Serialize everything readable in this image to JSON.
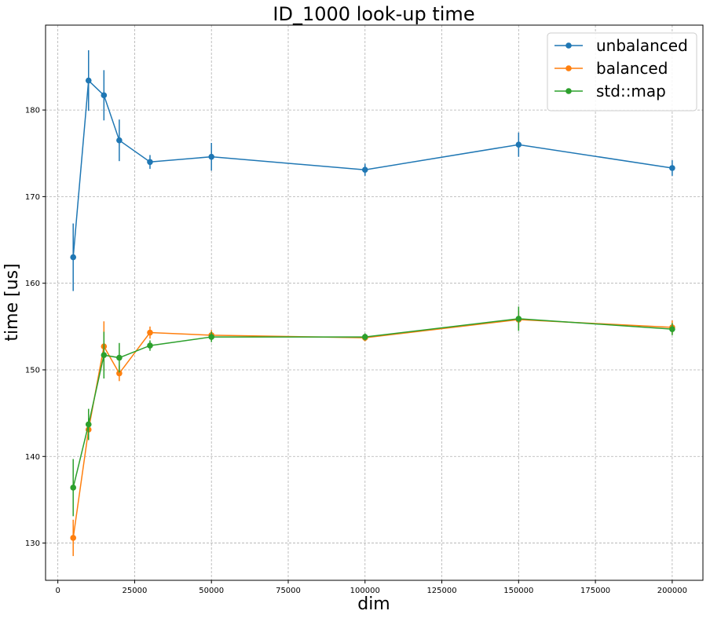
{
  "chart_data": {
    "type": "line",
    "title": "ID_1000 look-up time",
    "xlabel": "dim",
    "ylabel": "time [us]",
    "xlim": [
      -4000,
      210000
    ],
    "ylim": [
      125.7,
      189.8
    ],
    "x_ticks": [
      0,
      25000,
      50000,
      75000,
      100000,
      125000,
      150000,
      175000,
      200000
    ],
    "x_tick_labels": [
      "0",
      "25000",
      "50000",
      "75000",
      "100000",
      "125000",
      "150000",
      "175000",
      "200000"
    ],
    "y_ticks": [
      130,
      140,
      150,
      160,
      170,
      180
    ],
    "y_tick_labels": [
      "130",
      "140",
      "150",
      "160",
      "170",
      "180"
    ],
    "grid": true,
    "grid_style": "dashed",
    "legend_position": "top-right",
    "x": [
      5000,
      10000,
      15000,
      20000,
      30000,
      50000,
      100000,
      150000,
      200000
    ],
    "series": [
      {
        "name": "unbalanced",
        "color": "#1f77b4",
        "values": [
          163.0,
          183.4,
          181.7,
          176.5,
          174.0,
          174.6,
          173.1,
          176.0,
          173.3
        ],
        "errors": [
          3.9,
          3.5,
          2.9,
          2.4,
          0.8,
          1.6,
          0.7,
          1.4,
          0.9
        ]
      },
      {
        "name": "balanced",
        "color": "#ff7f0e",
        "values": [
          130.6,
          143.1,
          152.7,
          149.6,
          154.3,
          154.0,
          153.7,
          155.8,
          154.9
        ],
        "errors": [
          2.1,
          1.2,
          2.9,
          0.9,
          0.7,
          0.6,
          0.4,
          1.0,
          0.8
        ]
      },
      {
        "name": "std::map",
        "color": "#2ca02c",
        "values": [
          136.4,
          143.7,
          151.7,
          151.4,
          152.8,
          153.8,
          153.8,
          155.9,
          154.7
        ],
        "errors": [
          3.3,
          1.8,
          2.7,
          1.7,
          0.6,
          0.6,
          0.4,
          1.4,
          0.7
        ]
      }
    ]
  }
}
